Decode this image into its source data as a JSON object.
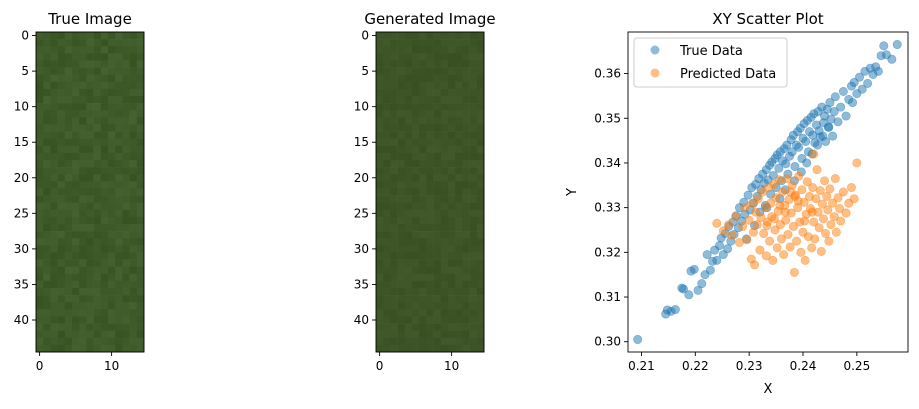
{
  "chart_data": [
    {
      "type": "heatmap",
      "title": "True Image",
      "rows": 45,
      "cols": 15,
      "base_color": "#3e5a28",
      "x_ticks": [
        "0",
        "10"
      ],
      "y_ticks": [
        "0",
        "5",
        "10",
        "15",
        "20",
        "25",
        "30",
        "35",
        "40"
      ],
      "xlim": [
        -0.5,
        14.5
      ],
      "ylim": [
        44.5,
        -0.5
      ]
    },
    {
      "type": "heatmap",
      "title": "Generated Image",
      "rows": 45,
      "cols": 15,
      "base_color": "#3d5526",
      "x_ticks": [
        "0",
        "10"
      ],
      "y_ticks": [
        "0",
        "5",
        "10",
        "15",
        "20",
        "25",
        "30",
        "35",
        "40"
      ],
      "xlim": [
        -0.5,
        14.5
      ],
      "ylim": [
        44.5,
        -0.5
      ]
    },
    {
      "type": "scatter",
      "title": "XY Scatter Plot",
      "xlabel": "X",
      "ylabel": "Y",
      "xlim": [
        0.2075,
        0.2595
      ],
      "ylim": [
        0.2977,
        0.3693
      ],
      "x_ticks": [
        "0.21",
        "0.22",
        "0.23",
        "0.24",
        "0.25"
      ],
      "y_ticks": [
        "0.30",
        "0.31",
        "0.32",
        "0.33",
        "0.34",
        "0.35",
        "0.36"
      ],
      "legend_position": "upper-left",
      "series": [
        {
          "name": "True Data",
          "color": "#1f77b4",
          "points": [
            [
              0.2093,
              0.3005
            ],
            [
              0.2145,
              0.3062
            ],
            [
              0.2148,
              0.3071
            ],
            [
              0.2155,
              0.3068
            ],
            [
              0.2163,
              0.3072
            ],
            [
              0.2175,
              0.312
            ],
            [
              0.2178,
              0.3118
            ],
            [
              0.2188,
              0.3105
            ],
            [
              0.2192,
              0.3158
            ],
            [
              0.2198,
              0.3162
            ],
            [
              0.2205,
              0.3115
            ],
            [
              0.2212,
              0.313
            ],
            [
              0.2218,
              0.315
            ],
            [
              0.2222,
              0.3195
            ],
            [
              0.2228,
              0.316
            ],
            [
              0.2232,
              0.318
            ],
            [
              0.2236,
              0.3205
            ],
            [
              0.224,
              0.3182
            ],
            [
              0.2245,
              0.3215
            ],
            [
              0.2248,
              0.3232
            ],
            [
              0.2252,
              0.3195
            ],
            [
              0.2256,
              0.3242
            ],
            [
              0.226,
              0.3208
            ],
            [
              0.2262,
              0.3258
            ],
            [
              0.2266,
              0.3225
            ],
            [
              0.227,
              0.3268
            ],
            [
              0.2272,
              0.324
            ],
            [
              0.2276,
              0.3282
            ],
            [
              0.228,
              0.3255
            ],
            [
              0.2282,
              0.33
            ],
            [
              0.2286,
              0.327
            ],
            [
              0.229,
              0.3312
            ],
            [
              0.2292,
              0.3285
            ],
            [
              0.2295,
              0.323
            ],
            [
              0.2298,
              0.3328
            ],
            [
              0.2302,
              0.3295
            ],
            [
              0.2305,
              0.3345
            ],
            [
              0.2308,
              0.331
            ],
            [
              0.231,
              0.326
            ],
            [
              0.2312,
              0.3352
            ],
            [
              0.2315,
              0.3325
            ],
            [
              0.2318,
              0.3365
            ],
            [
              0.232,
              0.329
            ],
            [
              0.2322,
              0.334
            ],
            [
              0.2325,
              0.3375
            ],
            [
              0.2328,
              0.3355
            ],
            [
              0.233,
              0.3305
            ],
            [
              0.2332,
              0.3385
            ],
            [
              0.2335,
              0.3362
            ],
            [
              0.2338,
              0.3395
            ],
            [
              0.234,
              0.333
            ],
            [
              0.2342,
              0.3402
            ],
            [
              0.2345,
              0.3372
            ],
            [
              0.2348,
              0.341
            ],
            [
              0.235,
              0.3345
            ],
            [
              0.2352,
              0.3418
            ],
            [
              0.2355,
              0.3388
            ],
            [
              0.2358,
              0.3425
            ],
            [
              0.236,
              0.336
            ],
            [
              0.2362,
              0.3405
            ],
            [
              0.2365,
              0.3432
            ],
            [
              0.2368,
              0.3398
            ],
            [
              0.237,
              0.344
            ],
            [
              0.2372,
              0.3375
            ],
            [
              0.2375,
              0.3415
            ],
            [
              0.2378,
              0.3452
            ],
            [
              0.238,
              0.3425
            ],
            [
              0.2382,
              0.3462
            ],
            [
              0.2385,
              0.3392
            ],
            [
              0.2388,
              0.344
            ],
            [
              0.239,
              0.347
            ],
            [
              0.2392,
              0.3435
            ],
            [
              0.2395,
              0.3478
            ],
            [
              0.2398,
              0.341
            ],
            [
              0.24,
              0.3455
            ],
            [
              0.2402,
              0.3488
            ],
            [
              0.2405,
              0.3448
            ],
            [
              0.2408,
              0.3495
            ],
            [
              0.241,
              0.3425
            ],
            [
              0.2412,
              0.347
            ],
            [
              0.2415,
              0.3502
            ],
            [
              0.2418,
              0.3462
            ],
            [
              0.242,
              0.351
            ],
            [
              0.2422,
              0.3445
            ],
            [
              0.2425,
              0.3485
            ],
            [
              0.2428,
              0.3515
            ],
            [
              0.243,
              0.3472
            ],
            [
              0.2432,
              0.3458
            ],
            [
              0.2435,
              0.3525
            ],
            [
              0.2438,
              0.349
            ],
            [
              0.244,
              0.3505
            ],
            [
              0.2442,
              0.3448
            ],
            [
              0.2445,
              0.352
            ],
            [
              0.2448,
              0.348
            ],
            [
              0.245,
              0.3535
            ],
            [
              0.2452,
              0.3498
            ],
            [
              0.2455,
              0.346
            ],
            [
              0.2458,
              0.3515
            ],
            [
              0.246,
              0.3548
            ],
            [
              0.2465,
              0.3492
            ],
            [
              0.247,
              0.3525
            ],
            [
              0.2475,
              0.356
            ],
            [
              0.248,
              0.3505
            ],
            [
              0.2485,
              0.3542
            ],
            [
              0.249,
              0.3572
            ],
            [
              0.2492,
              0.3535
            ],
            [
              0.2495,
              0.358
            ],
            [
              0.25,
              0.3555
            ],
            [
              0.2505,
              0.3592
            ],
            [
              0.251,
              0.3565
            ],
            [
              0.2515,
              0.3605
            ],
            [
              0.252,
              0.3578
            ],
            [
              0.2525,
              0.3612
            ],
            [
              0.253,
              0.3598
            ],
            [
              0.2535,
              0.3615
            ],
            [
              0.254,
              0.3605
            ],
            [
              0.2545,
              0.364
            ],
            [
              0.255,
              0.3662
            ],
            [
              0.2555,
              0.3642
            ],
            [
              0.2565,
              0.3632
            ],
            [
              0.2575,
              0.3665
            ],
            [
              0.2333,
              0.33
            ],
            [
              0.2357,
              0.332
            ],
            [
              0.2367,
              0.334
            ],
            [
              0.2384,
              0.336
            ],
            [
              0.2397,
              0.338
            ],
            [
              0.2407,
              0.34
            ],
            [
              0.2417,
              0.342
            ],
            [
              0.2427,
              0.344
            ],
            [
              0.2437,
              0.346
            ],
            [
              0.2447,
              0.348
            ]
          ]
        },
        {
          "name": "Predicted Data",
          "color": "#ff7f0e",
          "points": [
            [
              0.224,
              0.3265
            ],
            [
              0.2252,
              0.3248
            ],
            [
              0.2262,
              0.3262
            ],
            [
              0.2268,
              0.3238
            ],
            [
              0.2275,
              0.328
            ],
            [
              0.2282,
              0.3222
            ],
            [
              0.2288,
              0.3258
            ],
            [
              0.2292,
              0.33
            ],
            [
              0.2296,
              0.3228
            ],
            [
              0.23,
              0.3272
            ],
            [
              0.2304,
              0.3185
            ],
            [
              0.2306,
              0.331
            ],
            [
              0.2308,
              0.3245
            ],
            [
              0.231,
              0.3172
            ],
            [
              0.2312,
              0.329
            ],
            [
              0.2315,
              0.3262
            ],
            [
              0.2317,
              0.332
            ],
            [
              0.232,
              0.3205
            ],
            [
              0.2322,
              0.3278
            ],
            [
              0.2325,
              0.3335
            ],
            [
              0.2327,
              0.3242
            ],
            [
              0.233,
              0.33
            ],
            [
              0.2332,
              0.3192
            ],
            [
              0.2334,
              0.3268
            ],
            [
              0.2336,
              0.3345
            ],
            [
              0.2338,
              0.3225
            ],
            [
              0.234,
              0.331
            ],
            [
              0.2342,
              0.328
            ],
            [
              0.2344,
              0.3182
            ],
            [
              0.2346,
              0.3352
            ],
            [
              0.2348,
              0.325
            ],
            [
              0.235,
              0.3322
            ],
            [
              0.2352,
              0.321
            ],
            [
              0.2354,
              0.3292
            ],
            [
              0.2356,
              0.3362
            ],
            [
              0.2358,
              0.3262
            ],
            [
              0.236,
              0.323
            ],
            [
              0.2362,
              0.3335
            ],
            [
              0.2364,
              0.3195
            ],
            [
              0.2366,
              0.3305
            ],
            [
              0.2368,
              0.3272
            ],
            [
              0.237,
              0.3365
            ],
            [
              0.2372,
              0.324
            ],
            [
              0.2374,
              0.3318
            ],
            [
              0.2376,
              0.3212
            ],
            [
              0.2378,
              0.3288
            ],
            [
              0.238,
              0.335
            ],
            [
              0.2382,
              0.3258
            ],
            [
              0.2384,
              0.3155
            ],
            [
              0.2386,
              0.3328
            ],
            [
              0.2388,
              0.3225
            ],
            [
              0.239,
              0.33
            ],
            [
              0.2392,
              0.337
            ],
            [
              0.2394,
              0.3268
            ],
            [
              0.2396,
              0.32
            ],
            [
              0.2398,
              0.334
            ],
            [
              0.24,
              0.3245
            ],
            [
              0.2402,
              0.3312
            ],
            [
              0.2404,
              0.3182
            ],
            [
              0.2406,
              0.3285
            ],
            [
              0.2408,
              0.3358
            ],
            [
              0.241,
              0.3235
            ],
            [
              0.2412,
              0.3325
            ],
            [
              0.2414,
              0.3298
            ],
            [
              0.2416,
              0.321
            ],
            [
              0.2418,
              0.3345
            ],
            [
              0.242,
              0.3268
            ],
            [
              0.2422,
              0.323
            ],
            [
              0.2424,
              0.332
            ],
            [
              0.2426,
              0.3385
            ],
            [
              0.2428,
              0.329
            ],
            [
              0.243,
              0.3255
            ],
            [
              0.2432,
              0.3338
            ],
            [
              0.2434,
              0.3202
            ],
            [
              0.2436,
              0.3308
            ],
            [
              0.2438,
              0.3275
            ],
            [
              0.244,
              0.336
            ],
            [
              0.2442,
              0.3242
            ],
            [
              0.2444,
              0.3325
            ],
            [
              0.2446,
              0.3295
            ],
            [
              0.2448,
              0.3225
            ],
            [
              0.245,
              0.3342
            ],
            [
              0.2452,
              0.3262
            ],
            [
              0.2455,
              0.331
            ],
            [
              0.2458,
              0.328
            ],
            [
              0.246,
              0.3365
            ],
            [
              0.2462,
              0.3245
            ],
            [
              0.2465,
              0.3322
            ],
            [
              0.2468,
              0.3298
            ],
            [
              0.247,
              0.327
            ],
            [
              0.2475,
              0.3335
            ],
            [
              0.248,
              0.3288
            ],
            [
              0.2485,
              0.331
            ],
            [
              0.249,
              0.3345
            ],
            [
              0.2495,
              0.332
            ],
            [
              0.25,
              0.34
            ],
            [
              0.242,
              0.342
            ],
            [
              0.2385,
              0.3325
            ],
            [
              0.2357,
              0.3305
            ],
            [
              0.2333,
              0.326
            ],
            [
              0.2367,
              0.329
            ],
            [
              0.2347,
              0.3275
            ],
            [
              0.2377,
              0.3335
            ],
            [
              0.2391,
              0.3315
            ],
            [
              0.2403,
              0.327
            ],
            [
              0.2417,
              0.329
            ]
          ]
        }
      ]
    }
  ]
}
